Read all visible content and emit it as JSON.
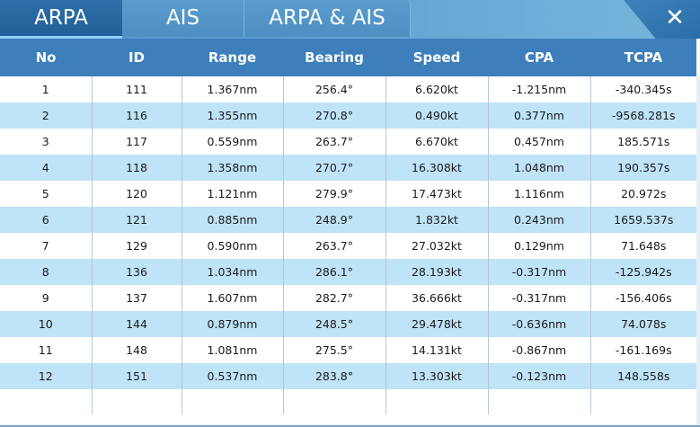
{
  "tabs": [
    {
      "label": "ARPA",
      "active": true
    },
    {
      "label": "AIS",
      "active": false
    },
    {
      "label": "ARPA & AIS",
      "active": false
    }
  ],
  "close_label": "✕",
  "columns": [
    "No",
    "ID",
    "Range",
    "Bearing",
    "Speed",
    "CPA",
    "TCPA"
  ],
  "rows": [
    [
      "1",
      "111",
      "1.367nm",
      "256.4°",
      "6.620kt",
      "-1.215nm",
      "-340.345s"
    ],
    [
      "2",
      "116",
      "1.355nm",
      "270.8°",
      "0.490kt",
      "0.377nm",
      "-9568.281s"
    ],
    [
      "3",
      "117",
      "0.559nm",
      "263.7°",
      "6.670kt",
      "0.457nm",
      "185.571s"
    ],
    [
      "4",
      "118",
      "1.358nm",
      "270.7°",
      "16.308kt",
      "1.048nm",
      "190.357s"
    ],
    [
      "5",
      "120",
      "1.121nm",
      "279.9°",
      "17.473kt",
      "1.116nm",
      "20.972s"
    ],
    [
      "6",
      "121",
      "0.885nm",
      "248.9°",
      "1.832kt",
      "0.243nm",
      "1659.537s"
    ],
    [
      "7",
      "129",
      "0.590nm",
      "263.7°",
      "27.032kt",
      "0.129nm",
      "71.648s"
    ],
    [
      "8",
      "136",
      "1.034nm",
      "286.1°",
      "28.193kt",
      "-0.317nm",
      "-125.942s"
    ],
    [
      "9",
      "137",
      "1.607nm",
      "282.7°",
      "36.666kt",
      "-0.317nm",
      "-156.406s"
    ],
    [
      "10",
      "144",
      "0.879nm",
      "248.5°",
      "29.478kt",
      "-0.636nm",
      "74.078s"
    ],
    [
      "11",
      "148",
      "1.081nm",
      "275.5°",
      "14.131kt",
      "-0.867nm",
      "-161.169s"
    ],
    [
      "12",
      "151",
      "0.537nm",
      "283.8°",
      "13.303kt",
      "-0.123nm",
      "148.558s"
    ]
  ],
  "colors": {
    "header_bg": "#3d7fba",
    "tab_active": "#2d6fa8",
    "row_alt": "#bfe3f7",
    "tab_underline": "#8fd0ff"
  }
}
